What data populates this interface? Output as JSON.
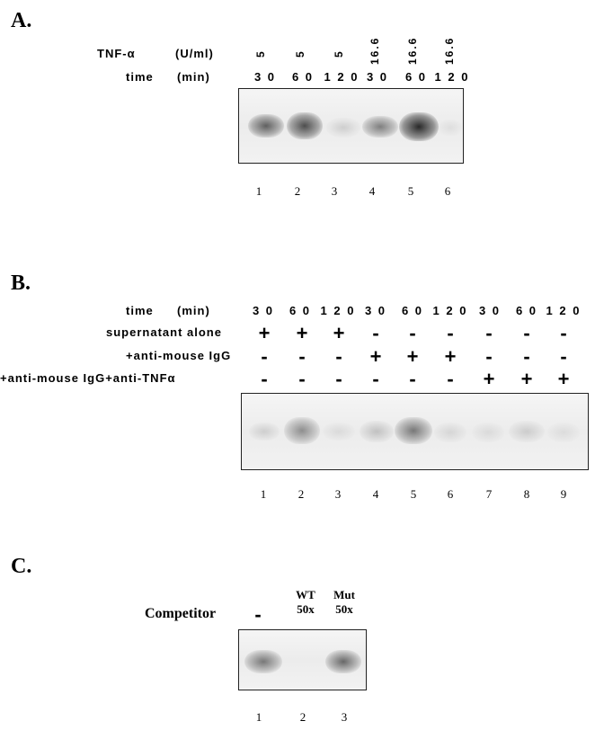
{
  "panelA": {
    "label": "A.",
    "row1_label": "TNF-α",
    "row1_unit": "(U/ml)",
    "row2_label": "time",
    "row2_unit": "(min)",
    "tnf": [
      "5",
      "5",
      "5",
      "16.6",
      "16.6",
      "16.6"
    ],
    "times": [
      "3 0",
      "6 0",
      "1 2 0",
      "3 0",
      "6 0",
      "1 2 0"
    ],
    "lanes": [
      "1",
      "2",
      "3",
      "4",
      "5",
      "6"
    ]
  },
  "panelB": {
    "label": "B.",
    "time_label": "time",
    "time_unit": "(min)",
    "times": [
      "3 0",
      "6 0",
      "1 2 0",
      "3 0",
      "6 0",
      "1 2 0",
      "3 0",
      "6 0",
      "1 2 0"
    ],
    "rows": [
      {
        "label": "supernatant alone",
        "values": [
          "+",
          "+",
          "+",
          "-",
          "-",
          "-",
          "-",
          "-",
          "-"
        ]
      },
      {
        "label": "+anti-mouse  IgG",
        "values": [
          "-",
          "-",
          "-",
          "+",
          "+",
          "+",
          "-",
          "-",
          "-"
        ]
      },
      {
        "label": "+anti-mouse  IgG+anti-TNFα",
        "values": [
          "-",
          "-",
          "-",
          "-",
          "-",
          "-",
          "+",
          "+",
          "+"
        ]
      }
    ],
    "lanes": [
      "1",
      "2",
      "3",
      "4",
      "5",
      "6",
      "7",
      "8",
      "9"
    ]
  },
  "panelC": {
    "label": "C.",
    "competitor_label": "Competitor",
    "lane1_value": "-",
    "lane2_value_top": "WT",
    "lane2_value_bottom": "50x",
    "lane3_value_top": "Mut",
    "lane3_value_bottom": "50x",
    "lanes": [
      "1",
      "2",
      "3"
    ]
  }
}
